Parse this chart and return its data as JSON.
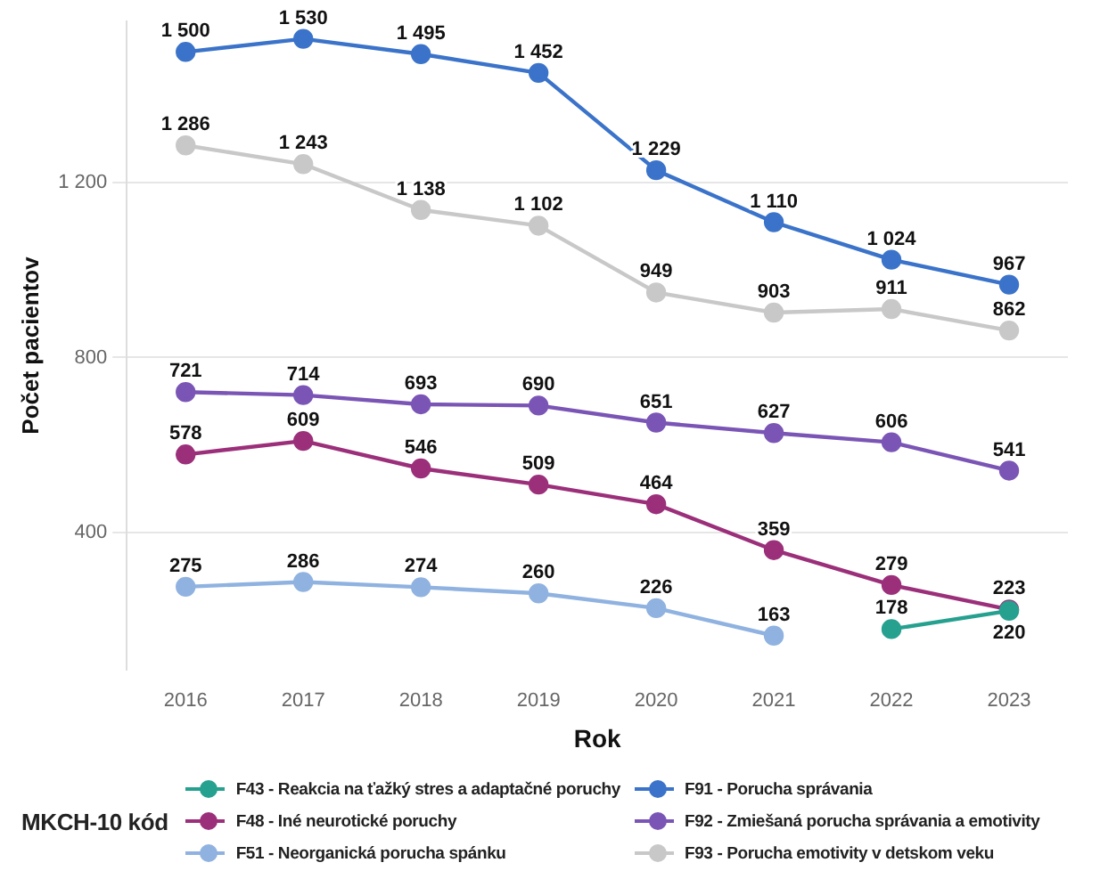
{
  "chart_data": {
    "type": "line",
    "xlabel": "Rok",
    "ylabel": "Počet pacientov",
    "legend_title": "MKCH-10 kód",
    "categories": [
      "2016",
      "2017",
      "2018",
      "2019",
      "2020",
      "2021",
      "2022",
      "2023"
    ],
    "series": [
      {
        "name": "F43 - Reakcia na ťažký stres a adaptačné poruchy",
        "color": "#26a08f",
        "values": [
          null,
          null,
          null,
          null,
          null,
          null,
          178,
          220
        ]
      },
      {
        "name": "F48 - Iné neurotické poruchy",
        "color": "#9b2f7a",
        "values": [
          578,
          609,
          546,
          509,
          464,
          359,
          279,
          223
        ]
      },
      {
        "name": "F51 - Neorganická porucha spánku",
        "color": "#8fb2e0",
        "values": [
          275,
          286,
          274,
          260,
          226,
          163,
          null,
          null
        ]
      },
      {
        "name": "F91 - Porucha správania",
        "color": "#3a73c9",
        "values": [
          1500,
          1530,
          1495,
          1452,
          1229,
          1110,
          1024,
          967
        ]
      },
      {
        "name": "F92 - Zmiešaná porucha správania a emotivity",
        "color": "#7a55b5",
        "values": [
          721,
          714,
          693,
          690,
          651,
          627,
          606,
          541
        ]
      },
      {
        "name": "F93 - Porucha emotivity v detskom veku",
        "color": "#c8c8c8",
        "values": [
          1286,
          1243,
          1138,
          1102,
          949,
          903,
          911,
          862
        ]
      }
    ],
    "ylim": [
      85,
      1570
    ],
    "yticks": [
      {
        "value": 400,
        "label": "400"
      },
      {
        "value": 800,
        "label": "800"
      },
      {
        "value": 1200,
        "label": "1 200"
      }
    ],
    "grid": "y",
    "legend": "bottom",
    "marker": "circle",
    "line_style": "solid",
    "data_labels": true
  }
}
